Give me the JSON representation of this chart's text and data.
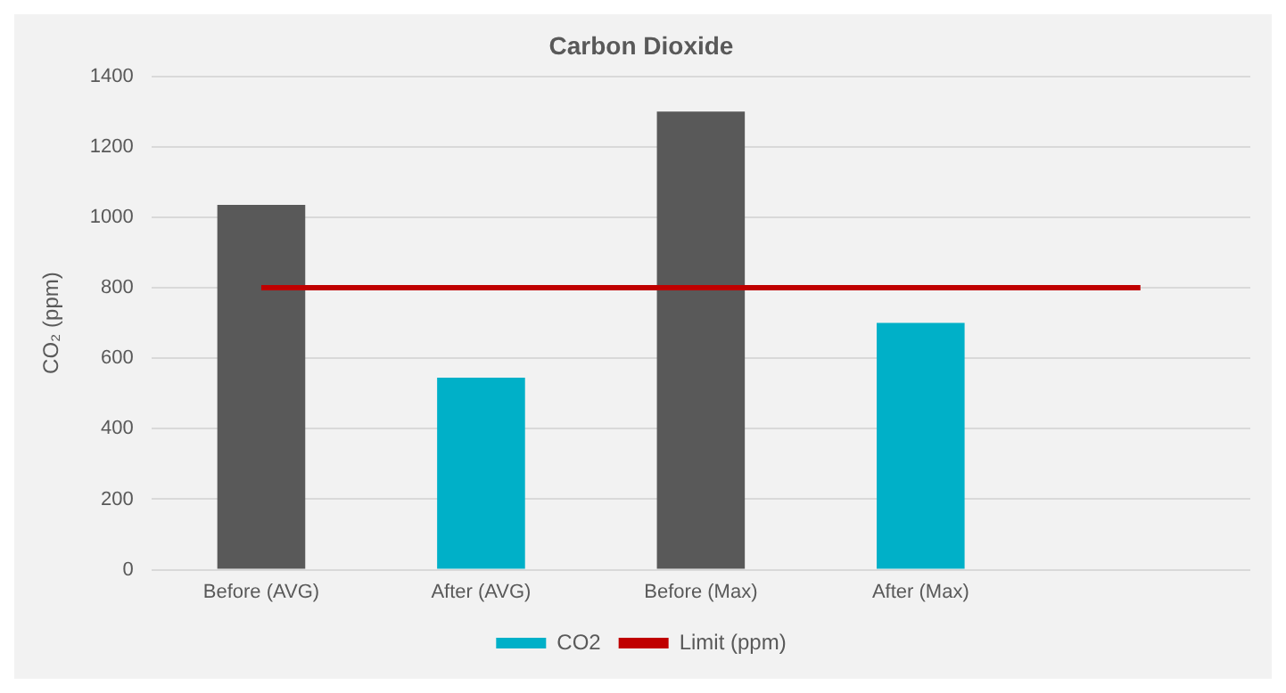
{
  "chart_data": {
    "type": "bar",
    "title": "Carbon Dioxide",
    "ylabel": "CO₂ (ppm)",
    "categories": [
      "Before (AVG)",
      "After (AVG)",
      "Before (Max)",
      "After (Max)",
      null
    ],
    "series": [
      {
        "name": "CO2",
        "color": "#00b0c8",
        "colors": [
          "#595959",
          "#00b0c8",
          "#595959",
          "#00b0c8",
          null
        ],
        "values": [
          1035,
          545,
          1300,
          700,
          null
        ]
      },
      {
        "name": "Limit (ppm)",
        "type": "line",
        "color": "#c00000",
        "values": [
          800,
          800,
          800,
          800,
          800
        ]
      }
    ],
    "ylim": [
      0,
      1400
    ],
    "yticks": [
      0,
      200,
      400,
      600,
      800,
      1000,
      1200,
      1400
    ],
    "grid": "y",
    "legend": "bottom",
    "marker": "none"
  }
}
